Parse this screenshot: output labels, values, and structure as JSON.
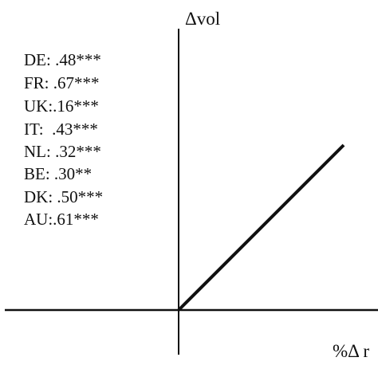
{
  "diagram": {
    "y_axis_label": "Δvol",
    "x_axis_label": "%Δ r",
    "coefficients": [
      "DE: .48***",
      "FR: .67***",
      "UK:.16***",
      "IT:  .43***",
      "NL: .32***",
      "BE: .30**",
      "DK: .50***",
      "AU:.61***"
    ]
  },
  "colors": {
    "ink": "#111111",
    "background": "#ffffff"
  }
}
